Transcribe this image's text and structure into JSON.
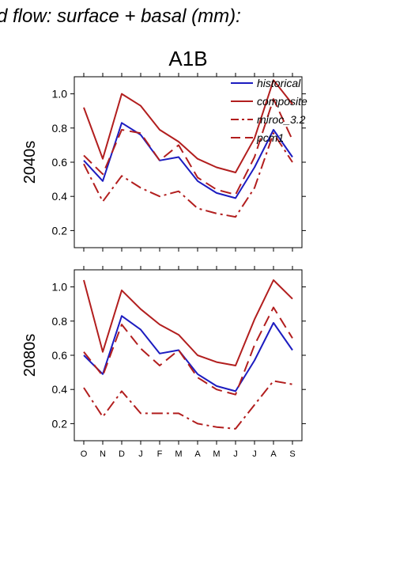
{
  "page_title": "d flow: surface + basal (mm):",
  "scenario": "A1B",
  "chart_data": [
    {
      "type": "line",
      "row_label": "2040s",
      "categories": [
        "O",
        "N",
        "D",
        "J",
        "F",
        "M",
        "A",
        "M",
        "J",
        "J",
        "A",
        "S"
      ],
      "ylim": [
        0.1,
        1.1
      ],
      "yticks": [
        0.2,
        0.4,
        0.6,
        0.8,
        1.0
      ],
      "legend_position": "top-right",
      "series": [
        {
          "name": "historical",
          "color": "#1c1cc0",
          "dash": "solid",
          "values": [
            0.61,
            0.49,
            0.83,
            0.76,
            0.61,
            0.63,
            0.49,
            0.42,
            0.39,
            0.57,
            0.79,
            0.63
          ]
        },
        {
          "name": "composite",
          "color": "#b21e1e",
          "dash": "solid",
          "values": [
            0.92,
            0.62,
            1.0,
            0.93,
            0.79,
            0.72,
            0.62,
            0.57,
            0.54,
            0.74,
            1.08,
            0.94
          ]
        },
        {
          "name": "miroc_3.2",
          "color": "#b21e1e",
          "dash": "dashdot",
          "values": [
            0.59,
            0.37,
            0.52,
            0.45,
            0.4,
            0.43,
            0.33,
            0.3,
            0.28,
            0.45,
            0.77,
            0.6
          ]
        },
        {
          "name": "pcm1",
          "color": "#b21e1e",
          "dash": "dashed",
          "values": [
            0.64,
            0.53,
            0.79,
            0.77,
            0.61,
            0.7,
            0.51,
            0.44,
            0.41,
            0.63,
            0.97,
            0.73
          ]
        }
      ]
    },
    {
      "type": "line",
      "row_label": "2080s",
      "categories": [
        "O",
        "N",
        "D",
        "J",
        "F",
        "M",
        "A",
        "M",
        "J",
        "J",
        "A",
        "S"
      ],
      "ylim": [
        0.1,
        1.1
      ],
      "yticks": [
        0.2,
        0.4,
        0.6,
        0.8,
        1.0
      ],
      "series": [
        {
          "name": "historical",
          "color": "#1c1cc0",
          "dash": "solid",
          "values": [
            0.6,
            0.49,
            0.83,
            0.75,
            0.61,
            0.63,
            0.49,
            0.42,
            0.39,
            0.57,
            0.79,
            0.63
          ]
        },
        {
          "name": "composite",
          "color": "#b21e1e",
          "dash": "solid",
          "values": [
            1.04,
            0.62,
            0.98,
            0.87,
            0.78,
            0.72,
            0.6,
            0.56,
            0.54,
            0.81,
            1.04,
            0.93
          ]
        },
        {
          "name": "miroc_3.2",
          "color": "#b21e1e",
          "dash": "dashdot",
          "values": [
            0.41,
            0.24,
            0.39,
            0.26,
            0.26,
            0.26,
            0.2,
            0.18,
            0.17,
            0.31,
            0.45,
            0.43
          ]
        },
        {
          "name": "pcm1",
          "color": "#b21e1e",
          "dash": "dashed",
          "values": [
            0.62,
            0.48,
            0.78,
            0.64,
            0.54,
            0.63,
            0.47,
            0.4,
            0.37,
            0.66,
            0.88,
            0.7
          ]
        }
      ]
    }
  ]
}
